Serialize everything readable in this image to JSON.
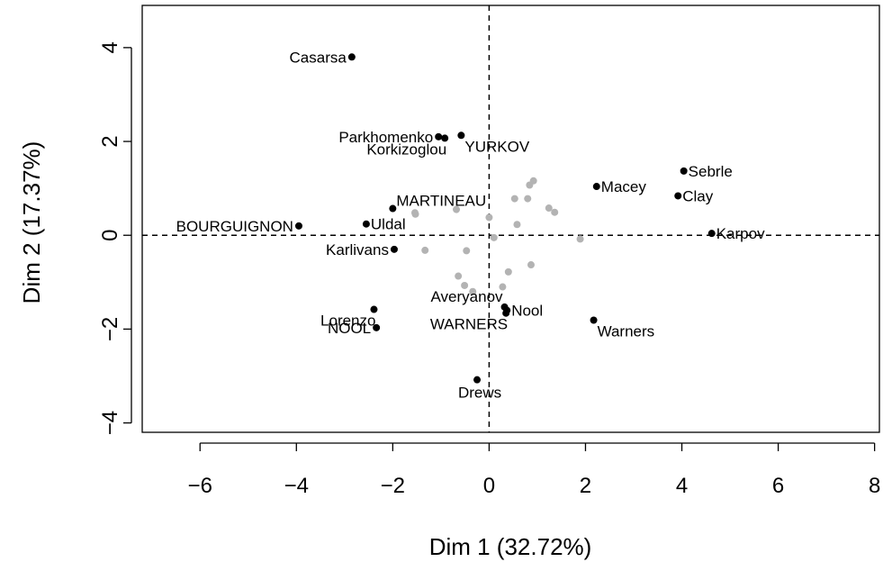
{
  "chart_data": {
    "type": "scatter",
    "xlabel": "Dim 1 (32.72%)",
    "ylabel": "Dim 2 (17.37%)",
    "xlim": [
      -7.2,
      8.1
    ],
    "ylim": [
      -4.2,
      4.9
    ],
    "xticks": [
      -6,
      -4,
      -2,
      0,
      2,
      4,
      6,
      8
    ],
    "yticks": [
      -4,
      -2,
      0,
      2,
      4
    ],
    "xtick_labels": [
      "−6",
      "−4",
      "−2",
      "0",
      "2",
      "4",
      "6",
      "8"
    ],
    "ytick_labels": [
      "−4",
      "−2",
      "0",
      "2",
      "4"
    ],
    "reference_lines": {
      "x": 0,
      "y": 0,
      "style": "dashed"
    },
    "colors": {
      "labeled": "#000000",
      "unlabeled": "#b3b3b3"
    },
    "labeled_points": [
      {
        "label": "Casarsa",
        "x": -2.85,
        "y": 3.8,
        "pos": "left"
      },
      {
        "label": "Parkhomenko",
        "x": -1.05,
        "y": 2.1,
        "pos": "left"
      },
      {
        "label": "Korkizoglou",
        "x": -0.92,
        "y": 2.07,
        "pos": "left-below"
      },
      {
        "label": "YURKOV",
        "x": -0.58,
        "y": 2.13,
        "pos": "right-below"
      },
      {
        "label": "MARTINEAU",
        "x": -2.0,
        "y": 0.57,
        "pos": "right-above"
      },
      {
        "label": "BOURGUIGNON",
        "x": -3.95,
        "y": 0.2,
        "pos": "left"
      },
      {
        "label": "Uldal",
        "x": -2.55,
        "y": 0.24,
        "pos": "right"
      },
      {
        "label": "Karlivans",
        "x": -1.97,
        "y": -0.3,
        "pos": "left"
      },
      {
        "label": "Macey",
        "x": 2.23,
        "y": 1.04,
        "pos": "right"
      },
      {
        "label": "Sebrle",
        "x": 4.04,
        "y": 1.37,
        "pos": "right"
      },
      {
        "label": "Clay",
        "x": 3.92,
        "y": 0.84,
        "pos": "right"
      },
      {
        "label": "Karpov",
        "x": 4.62,
        "y": 0.04,
        "pos": "right"
      },
      {
        "label": "Averyanov",
        "x": 0.32,
        "y": -1.53,
        "pos": "left-above"
      },
      {
        "label": "Nool",
        "x": 0.37,
        "y": -1.6,
        "pos": "right"
      },
      {
        "label": "WARNERS",
        "x": 0.35,
        "y": -1.66,
        "pos": "left-below"
      },
      {
        "label": "Lorenzo",
        "x": -2.39,
        "y": -1.58,
        "pos": "left-below"
      },
      {
        "label": "NOOL",
        "x": -2.34,
        "y": -1.97,
        "pos": "left"
      },
      {
        "label": "Warners",
        "x": 2.17,
        "y": -1.81,
        "pos": "right-below"
      },
      {
        "label": "Drews",
        "x": -0.25,
        "y": -3.08,
        "pos": "below"
      }
    ],
    "unlabeled_points": [
      [
        0.92,
        1.16
      ],
      [
        0.84,
        1.07
      ],
      [
        0.53,
        0.78
      ],
      [
        0.8,
        0.78
      ],
      [
        1.24,
        0.58
      ],
      [
        1.36,
        0.49
      ],
      [
        -0.68,
        0.55
      ],
      [
        -1.53,
        0.45
      ],
      [
        -1.54,
        0.48
      ],
      [
        0.0,
        0.38
      ],
      [
        0.58,
        0.23
      ],
      [
        0.1,
        -0.05
      ],
      [
        1.89,
        -0.08
      ],
      [
        -1.33,
        -0.32
      ],
      [
        -0.47,
        -0.33
      ],
      [
        0.87,
        -0.63
      ],
      [
        0.4,
        -0.78
      ],
      [
        -0.64,
        -0.87
      ],
      [
        -0.51,
        -1.07
      ],
      [
        -0.34,
        -1.2
      ],
      [
        0.28,
        -1.1
      ]
    ]
  }
}
